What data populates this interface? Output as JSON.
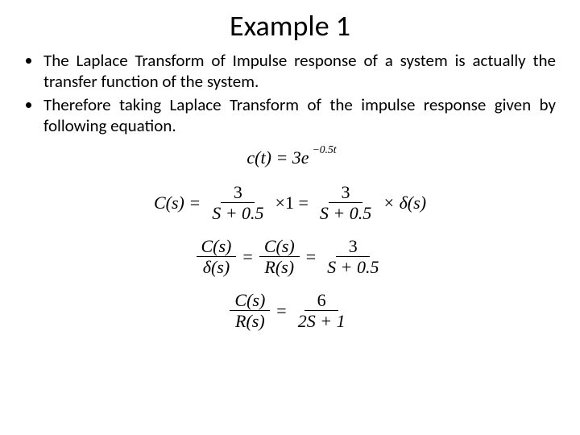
{
  "title": "Example 1",
  "bullets": [
    "The Laplace Transform of Impulse response of a system is actually the transfer function of the system.",
    "Therefore taking Laplace Transform of the impulse response given by following equation."
  ],
  "eq1": {
    "lhs": "c(t) = 3e",
    "exp": "−0.5t"
  },
  "eq2": {
    "lhs": "C(s) =",
    "f1_num": "3",
    "f1_den": "S + 0.5",
    "mid1": "×1 =",
    "f2_num": "3",
    "f2_den": "S + 0.5",
    "mid2": "× δ(s)"
  },
  "eq3": {
    "f1_num": "C(s)",
    "f1_den": "δ(s)",
    "mid1": "=",
    "f2_num": "C(s)",
    "f2_den": "R(s)",
    "mid2": "=",
    "f3_num": "3",
    "f3_den": "S + 0.5"
  },
  "eq4": {
    "f1_num": "C(s)",
    "f1_den": "R(s)",
    "mid": "=",
    "f2_num": "6",
    "f2_den": "2S + 1"
  }
}
